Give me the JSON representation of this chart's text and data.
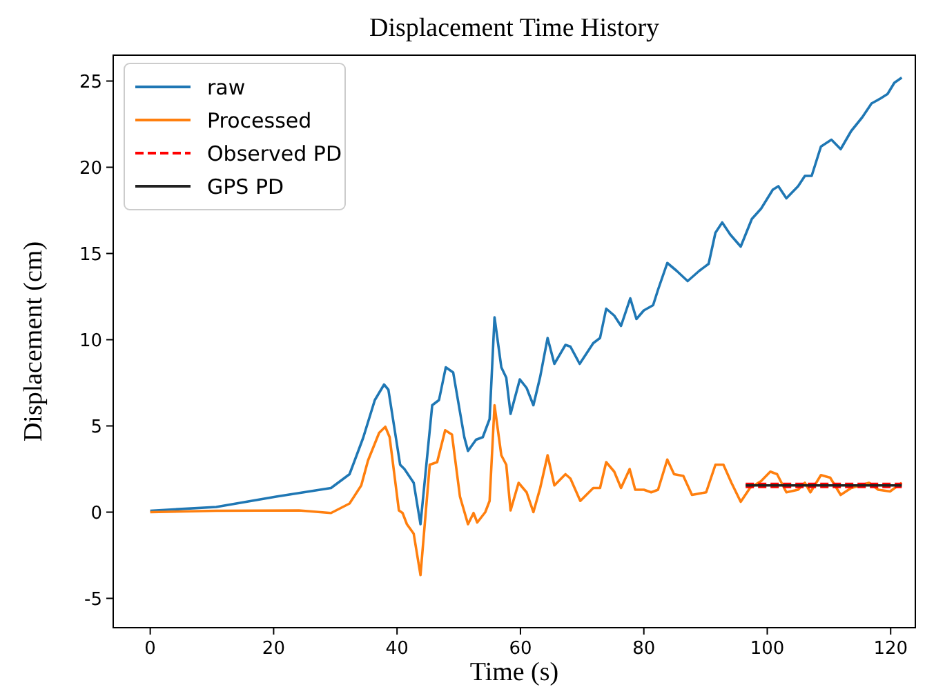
{
  "chart_data": {
    "type": "line",
    "title": "Displacement Time History",
    "xlabel": "Time (s)",
    "ylabel": "Displacement (cm)",
    "xlim": [
      -6,
      124
    ],
    "ylim": [
      -6.7,
      26.5
    ],
    "xticks": [
      0,
      20,
      40,
      60,
      80,
      100,
      120
    ],
    "yticks": [
      -5,
      0,
      5,
      10,
      15,
      20,
      25
    ],
    "grid": false,
    "legend": "top left",
    "series": [
      {
        "name": "raw",
        "color": "#1f77b4",
        "line_style": "solid",
        "x": [
          0,
          10.7,
          20.4,
          29.3,
          32.3,
          34.5,
          36.4,
          37.9,
          38.6,
          40.5,
          41.2,
          42.7,
          43.8,
          45.7,
          46.8,
          47.9,
          49.1,
          50.9,
          51.5,
          52.8,
          53.9,
          55.0,
          55.8,
          56.9,
          57.7,
          58.4,
          59.9,
          61.0,
          62.1,
          63.2,
          64.4,
          65.5,
          67.3,
          68.1,
          69.6,
          71.8,
          72.9,
          73.9,
          75.2,
          76.3,
          77.8,
          78.8,
          80.0,
          81.5,
          82.3,
          83.8,
          85.3,
          87.1,
          89.0,
          90.5,
          91.6,
          92.7,
          94.0,
          95.7,
          97.5,
          99.0,
          100.9,
          101.8,
          103.1,
          105.0,
          106.1,
          107.2,
          108.7,
          110.4,
          111.9,
          113.6,
          115.4,
          116.9,
          118.4,
          119.5,
          120.6,
          121.8
        ],
        "values": [
          0.08,
          0.3,
          0.9,
          1.4,
          2.2,
          4.3,
          6.5,
          7.4,
          7.1,
          2.75,
          2.5,
          1.7,
          -0.7,
          6.2,
          6.5,
          8.4,
          8.1,
          4.35,
          3.55,
          4.2,
          4.35,
          5.4,
          11.3,
          8.4,
          7.8,
          5.7,
          7.7,
          7.2,
          6.2,
          7.85,
          10.1,
          8.6,
          9.7,
          9.6,
          8.6,
          9.8,
          10.1,
          11.8,
          11.4,
          10.8,
          12.4,
          11.2,
          11.7,
          12.0,
          12.9,
          14.45,
          14.0,
          13.4,
          14.0,
          14.4,
          16.2,
          16.8,
          16.1,
          15.4,
          17.0,
          17.6,
          18.7,
          18.9,
          18.2,
          18.9,
          19.5,
          19.5,
          21.2,
          21.6,
          21.05,
          22.1,
          22.9,
          23.7,
          24.0,
          24.25,
          24.9,
          25.2
        ]
      },
      {
        "name": "Processed",
        "color": "#ff7f0e",
        "line_style": "solid",
        "x": [
          0,
          10.7,
          24.1,
          29.3,
          32.3,
          34.2,
          35.3,
          37.1,
          38.1,
          38.8,
          40.3,
          40.9,
          41.6,
          42.7,
          43.8,
          45.3,
          46.5,
          47.8,
          48.9,
          50.2,
          51.5,
          52.4,
          53.0,
          54.3,
          55.0,
          55.8,
          56.9,
          57.7,
          58.4,
          59.7,
          61.0,
          62.1,
          63.2,
          64.4,
          65.5,
          67.3,
          68.1,
          69.7,
          71.8,
          72.9,
          73.9,
          75.2,
          76.3,
          77.7,
          78.6,
          80.0,
          81.2,
          82.3,
          83.8,
          84.9,
          86.4,
          87.8,
          90.1,
          91.6,
          92.9,
          94.2,
          95.7,
          97.2,
          99.0,
          100.5,
          101.6,
          103.1,
          105.0,
          106.1,
          107.0,
          108.7,
          110.2,
          111.9,
          113.6,
          116.5,
          118.0,
          119.9,
          121.8
        ],
        "values": [
          0.0,
          0.08,
          0.1,
          -0.05,
          0.5,
          1.55,
          3.0,
          4.6,
          4.95,
          4.35,
          0.1,
          -0.05,
          -0.7,
          -1.25,
          -3.65,
          2.75,
          2.9,
          4.75,
          4.5,
          0.9,
          -0.7,
          -0.05,
          -0.6,
          0.0,
          0.65,
          6.2,
          3.3,
          2.75,
          0.1,
          1.7,
          1.15,
          0.0,
          1.4,
          3.3,
          1.55,
          2.2,
          1.95,
          0.65,
          1.4,
          1.4,
          2.9,
          2.35,
          1.4,
          2.5,
          1.3,
          1.3,
          1.15,
          1.3,
          3.05,
          2.2,
          2.1,
          1.0,
          1.15,
          2.75,
          2.75,
          1.7,
          0.6,
          1.4,
          1.8,
          2.35,
          2.2,
          1.15,
          1.3,
          1.7,
          1.15,
          2.15,
          2.0,
          1.0,
          1.4,
          1.7,
          1.3,
          1.2,
          1.7
        ]
      },
      {
        "name": "Observed PD",
        "color": "#ff0000",
        "line_style": "dashed",
        "x": [
          96.5,
          121.8
        ],
        "values": [
          1.55,
          1.55
        ]
      },
      {
        "name": "GPS PD",
        "color": "#222222",
        "line_style": "solid",
        "x": [
          96.5,
          121.8
        ],
        "values": [
          1.55,
          1.55
        ]
      }
    ]
  }
}
